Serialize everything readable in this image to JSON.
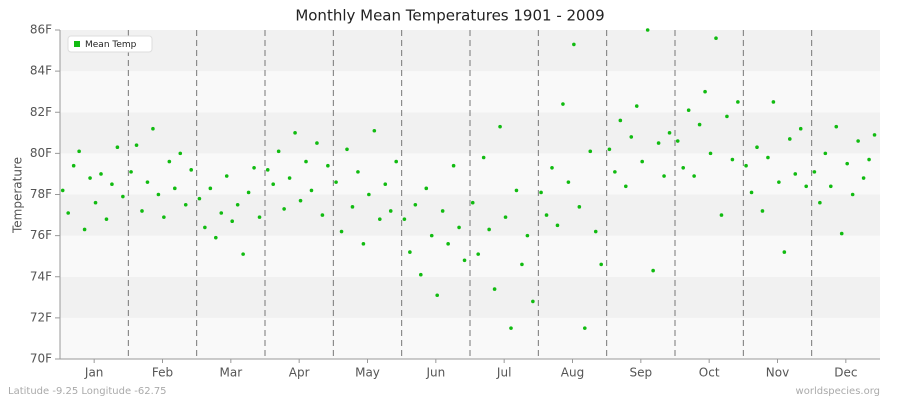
{
  "chart_data": {
    "type": "scatter",
    "title": "Monthly Mean Temperatures 1901 - 2009",
    "y_label": "Temperature",
    "footer_left": "Latitude -9.25 Longitude -62.75",
    "footer_right": "worldspecies.org",
    "legend": "upper left",
    "xlim": [
      0,
      12
    ],
    "xticks": [
      {
        "value": 0.5,
        "label": "Jan"
      },
      {
        "value": 1.5,
        "label": "Feb"
      },
      {
        "value": 2.5,
        "label": "Mar"
      },
      {
        "value": 3.5,
        "label": "Apr"
      },
      {
        "value": 4.5,
        "label": "May"
      },
      {
        "value": 5.5,
        "label": "Jun"
      },
      {
        "value": 6.5,
        "label": "Jul"
      },
      {
        "value": 7.5,
        "label": "Aug"
      },
      {
        "value": 8.5,
        "label": "Sep"
      },
      {
        "value": 9.5,
        "label": "Oct"
      },
      {
        "value": 10.5,
        "label": "Nov"
      },
      {
        "value": 11.5,
        "label": "Dec"
      }
    ],
    "ylim": [
      70,
      86
    ],
    "yticks": [
      {
        "value": 70,
        "label": "70F"
      },
      {
        "value": 72,
        "label": "72F"
      },
      {
        "value": 74,
        "label": "74F"
      },
      {
        "value": 76,
        "label": "76F"
      },
      {
        "value": 78,
        "label": "78F"
      },
      {
        "value": 80,
        "label": "80F"
      },
      {
        "value": 82,
        "label": "82F"
      },
      {
        "value": 84,
        "label": "84F"
      },
      {
        "value": 86,
        "label": "86F"
      }
    ],
    "series": [
      {
        "name": "Mean Temp",
        "color": "#11bb11",
        "x": [
          0.04,
          0.12,
          0.2,
          0.28,
          0.36,
          0.44,
          0.52,
          0.6,
          0.68,
          0.76,
          0.84,
          0.92,
          1.04,
          1.12,
          1.2,
          1.28,
          1.36,
          1.44,
          1.52,
          1.6,
          1.68,
          1.76,
          1.84,
          1.92,
          2.04,
          2.12,
          2.2,
          2.28,
          2.36,
          2.44,
          2.52,
          2.6,
          2.68,
          2.76,
          2.84,
          2.92,
          3.04,
          3.12,
          3.2,
          3.28,
          3.36,
          3.44,
          3.52,
          3.6,
          3.68,
          3.76,
          3.84,
          3.92,
          4.04,
          4.12,
          4.2,
          4.28,
          4.36,
          4.44,
          4.52,
          4.6,
          4.68,
          4.76,
          4.84,
          4.92,
          5.04,
          5.12,
          5.2,
          5.28,
          5.36,
          5.44,
          5.52,
          5.6,
          5.68,
          5.76,
          5.84,
          5.92,
          6.04,
          6.12,
          6.2,
          6.28,
          6.36,
          6.44,
          6.52,
          6.6,
          6.68,
          6.76,
          6.84,
          6.92,
          7.04,
          7.12,
          7.2,
          7.28,
          7.36,
          7.44,
          7.52,
          7.6,
          7.68,
          7.76,
          7.84,
          7.92,
          8.04,
          8.12,
          8.2,
          8.28,
          8.36,
          8.44,
          8.52,
          8.6,
          8.68,
          8.76,
          8.84,
          8.92,
          9.04,
          9.12,
          9.2,
          9.28,
          9.36,
          9.44,
          9.52,
          9.6,
          9.68,
          9.76,
          9.84,
          9.92,
          10.04,
          10.12,
          10.2,
          10.28,
          10.36,
          10.44,
          10.52,
          10.6,
          10.68,
          10.76,
          10.84,
          10.92,
          11.04,
          11.12,
          11.2,
          11.28,
          11.36,
          11.44,
          11.52,
          11.6,
          11.68,
          11.76,
          11.84,
          11.92
        ],
        "values": [
          78.2,
          77.1,
          79.4,
          80.1,
          76.3,
          78.8,
          77.6,
          79.0,
          76.8,
          78.5,
          80.3,
          77.9,
          79.1,
          80.4,
          77.2,
          78.6,
          81.2,
          78.0,
          76.9,
          79.6,
          78.3,
          80.0,
          77.5,
          79.2,
          77.8,
          76.4,
          78.3,
          75.9,
          77.1,
          78.9,
          76.7,
          77.5,
          75.1,
          78.1,
          79.3,
          76.9,
          79.2,
          78.5,
          80.1,
          77.3,
          78.8,
          81.0,
          77.7,
          79.6,
          78.2,
          80.5,
          77.0,
          79.4,
          78.6,
          76.2,
          80.2,
          77.4,
          79.1,
          75.6,
          78.0,
          81.1,
          76.8,
          78.5,
          77.2,
          79.6,
          76.8,
          75.2,
          77.5,
          74.1,
          78.3,
          76.0,
          73.1,
          77.2,
          75.6,
          79.4,
          76.4,
          74.8,
          77.6,
          75.1,
          79.8,
          76.3,
          73.4,
          81.3,
          76.9,
          71.5,
          78.2,
          74.6,
          76.0,
          72.8,
          78.1,
          77.0,
          79.3,
          76.5,
          82.4,
          78.6,
          85.3,
          77.4,
          71.5,
          80.1,
          76.2,
          74.6,
          80.2,
          79.1,
          81.6,
          78.4,
          80.8,
          82.3,
          79.6,
          86.0,
          74.3,
          80.5,
          78.9,
          81.0,
          80.6,
          79.3,
          82.1,
          78.9,
          81.4,
          83.0,
          80.0,
          85.6,
          77.0,
          81.8,
          79.7,
          82.5,
          79.4,
          78.1,
          80.3,
          77.2,
          79.8,
          82.5,
          78.6,
          75.2,
          80.7,
          79.0,
          81.2,
          78.4,
          79.1,
          77.6,
          80.0,
          78.4,
          81.3,
          76.1,
          79.5,
          78.0,
          80.6,
          78.8,
          79.7,
          80.9
        ]
      }
    ]
  }
}
